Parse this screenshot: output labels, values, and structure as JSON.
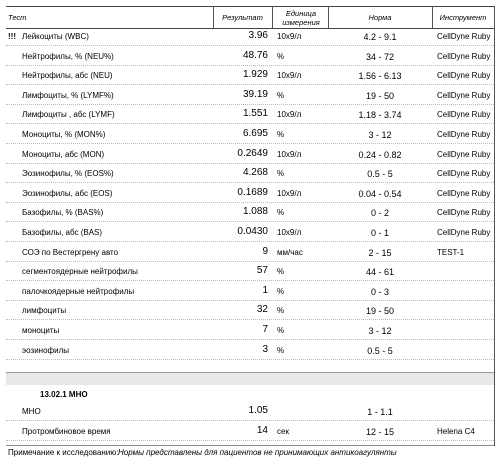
{
  "header": {
    "columns": [
      "Тест",
      "Результат",
      "Единица измерения",
      "Норма",
      "Инструмент"
    ]
  },
  "rows": [
    {
      "flag": "!!!",
      "test": "Лейкоциты (WBC)",
      "result": "3.96",
      "unit": "10x9/л",
      "norm": "4.2 - 9.1",
      "instrument": "CellDyne Ruby"
    },
    {
      "test": "Нейтрофилы, % (NEU%)",
      "result": "48.76",
      "unit": "%",
      "norm": "34 - 72",
      "instrument": "CellDyne Ruby"
    },
    {
      "test": "Нейтрофилы, абс (NEU)",
      "result": "1.929",
      "unit": "10x9/л",
      "norm": "1.56 - 6.13",
      "instrument": "CellDyne Ruby"
    },
    {
      "test": "Лимфоциты, % (LYMF%)",
      "result": "39.19",
      "unit": "%",
      "norm": "19 - 50",
      "instrument": "CellDyne Ruby"
    },
    {
      "test": "Лимфоциты , абс (LYMF)",
      "result": "1.551",
      "unit": "10x9/л",
      "norm": "1.18 - 3.74",
      "instrument": "CellDyne Ruby"
    },
    {
      "test": "Моноциты, % (MON%)",
      "result": "6.695",
      "unit": "%",
      "norm": "3 - 12",
      "instrument": "CellDyne Ruby"
    },
    {
      "test": "Моноциты, абс (MON)",
      "result": "0.2649",
      "unit": "10x9/л",
      "norm": "0.24 - 0.82",
      "instrument": "CellDyne Ruby"
    },
    {
      "test": "Эозинофилы, % (EOS%)",
      "result": "4.268",
      "unit": "%",
      "norm": "0.5 - 5",
      "instrument": "CellDyne Ruby"
    },
    {
      "test": "Эозинофилы, абс (EOS)",
      "result": "0.1689",
      "unit": "10x9/л",
      "norm": "0.04 - 0.54",
      "instrument": "CellDyne Ruby"
    },
    {
      "test": "Базофилы, % (BAS%)",
      "result": "1.088",
      "unit": "%",
      "norm": "0 - 2",
      "instrument": "CellDyne Ruby"
    },
    {
      "test": "Базофилы, абс (BAS)",
      "result": "0.0430",
      "unit": "10x9/л",
      "norm": "0 - 1",
      "instrument": "CellDyne Ruby"
    },
    {
      "test": "СОЭ по Вестергрену авто",
      "result": "9",
      "unit": "мм/час",
      "norm": "2 - 15",
      "instrument": "TEST-1"
    },
    {
      "test": "сегментоядерные нейтрофилы",
      "result": "57",
      "unit": "%",
      "norm": "44 - 61"
    },
    {
      "test": "палочкоядерные нейтрофилы",
      "result": "1",
      "unit": "%",
      "norm": "0 - 3"
    },
    {
      "test": "лимфоциты",
      "result": "32",
      "unit": "%",
      "norm": "19 - 50"
    },
    {
      "test": "моноциты",
      "result": "7",
      "unit": "%",
      "norm": "3 - 12"
    },
    {
      "test": "эозинофилы",
      "result": "3",
      "unit": "%",
      "norm": "0.5 - 5"
    }
  ],
  "section": {
    "title": "13.02.1 МНО",
    "rows": [
      {
        "test": "МНО",
        "result": "1.05",
        "norm": "1 - 1.1"
      },
      {
        "test": "Протромбиновое время",
        "result": "14",
        "unit": "сек",
        "norm": "12 - 15",
        "instrument": "Helena C4"
      }
    ]
  },
  "note": {
    "label": "Примечание к исследованию:",
    "text": "Нормы представлены для пациентов не принимающих антикоагулянты"
  }
}
